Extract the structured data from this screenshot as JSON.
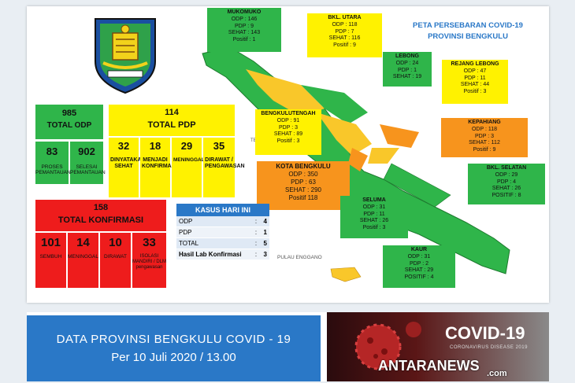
{
  "map_title": {
    "line1": "PETA PERSEBARAN COVID-19",
    "line2": "PROVINSI BENGKULU"
  },
  "odp": {
    "total": "985",
    "label": "TOTAL ODP",
    "sub": [
      {
        "value": "83",
        "label": "PROSES PEMANTAUAN"
      },
      {
        "value": "902",
        "label": "SELESAI PEMANTAUAN"
      }
    ]
  },
  "pdp": {
    "total": "114",
    "label": "TOTAL PDP",
    "sub": [
      {
        "value": "32",
        "label": "DINYATAKAN SEHAT"
      },
      {
        "value": "18",
        "label": "MENJADI KONFIRMASI"
      },
      {
        "value": "29",
        "label": "MENINGGAL"
      },
      {
        "value": "35",
        "label": "DIRAWAT / PENGAWASAN"
      }
    ]
  },
  "konfirmasi": {
    "total": "158",
    "label": "TOTAL KONFIRMASI",
    "sub": [
      {
        "value": "101",
        "label": "SEMBUH"
      },
      {
        "value": "14",
        "label": "MENINGGAL"
      },
      {
        "value": "10",
        "label": "DIRAWAT"
      },
      {
        "value": "33",
        "label": "ISOLASI MANDIRI / DLM pengawasan"
      }
    ]
  },
  "kasus_hari_ini": {
    "title": "KASUS HARI INI",
    "rows": [
      {
        "label": "ODP",
        "sep": ":",
        "value": "4"
      },
      {
        "label": "PDP",
        "sep": ":",
        "value": "1"
      },
      {
        "label": "TOTAL",
        "sep": ":",
        "value": "5"
      },
      {
        "label": "Hasil Lab Konfirmasi",
        "sep": ":",
        "value": "3"
      }
    ]
  },
  "regions": {
    "mukomuko": {
      "name": "MUKOMUKO",
      "lines": [
        "ODP : 146",
        "PDP : 9",
        "SEHAT : 143",
        "Positif : 1"
      ]
    },
    "bkl_utara": {
      "name": "BKL. UTARA",
      "lines": [
        "ODP : 118",
        "PDP : 7",
        "SEHAT : 116",
        "Positif : 9"
      ]
    },
    "lebong": {
      "name": "LEBONG",
      "lines": [
        "ODP : 24",
        "PDP : 1",
        "SEHAT : 19"
      ]
    },
    "rejang_lebong": {
      "name": "REJANG LEBONG",
      "lines": [
        "ODP : 47",
        "PDP : 11",
        "SEHAT : 44",
        "Positif : 3"
      ]
    },
    "bengkulu_tengah": {
      "name": "BENGKULUTENGAH",
      "lines": [
        "ODP : 91",
        "PDP : 3",
        "SEHAT : 89",
        "Positif : 3"
      ]
    },
    "kepahiang": {
      "name": "KEPAHIANG",
      "lines": [
        "ODP : 118",
        "PDP : 3",
        "SEHAT : 112",
        "Positif : 9"
      ]
    },
    "kota_bengkulu": {
      "name": "KOTA BENGKULU",
      "lines": [
        "ODP : 350",
        "PDP : 63",
        "SEHAT : 290",
        "Positif 118"
      ]
    },
    "bkl_selatan": {
      "name": "BKL. SELATAN",
      "lines": [
        "ODP : 29",
        "PDP : 4",
        "SEHAT : 26",
        "POSITIF : 8"
      ]
    },
    "seluma": {
      "name": "SELUMA",
      "lines": [
        "ODP : 31",
        "PDP : 11",
        "SEHAT : 26",
        "Positif : 3"
      ]
    },
    "kaur": {
      "name": "KAUR",
      "lines": [
        "ODP : 31",
        "PDP : 2",
        "SEHAT : 29",
        "POSITIF : 4"
      ]
    }
  },
  "map_labels": {
    "enggano": "PULAU ENGGANO",
    "partial": "TE"
  },
  "banner": {
    "line1": "DATA PROVINSI BENGKULU COVID - 19",
    "line2": "Per 10 Juli  2020 / 13.00",
    "covid_title": "COVID-19",
    "covid_sub": "CORONAVIRUS DISEASE 2019",
    "watermark": "ANTARANEWS",
    "watermark_sub": ".com"
  },
  "colors": {
    "green": "#2fb54a",
    "yellow": "#fff200",
    "red": "#ee1c1c",
    "orange": "#f7941d",
    "blue": "#2a78c7"
  }
}
